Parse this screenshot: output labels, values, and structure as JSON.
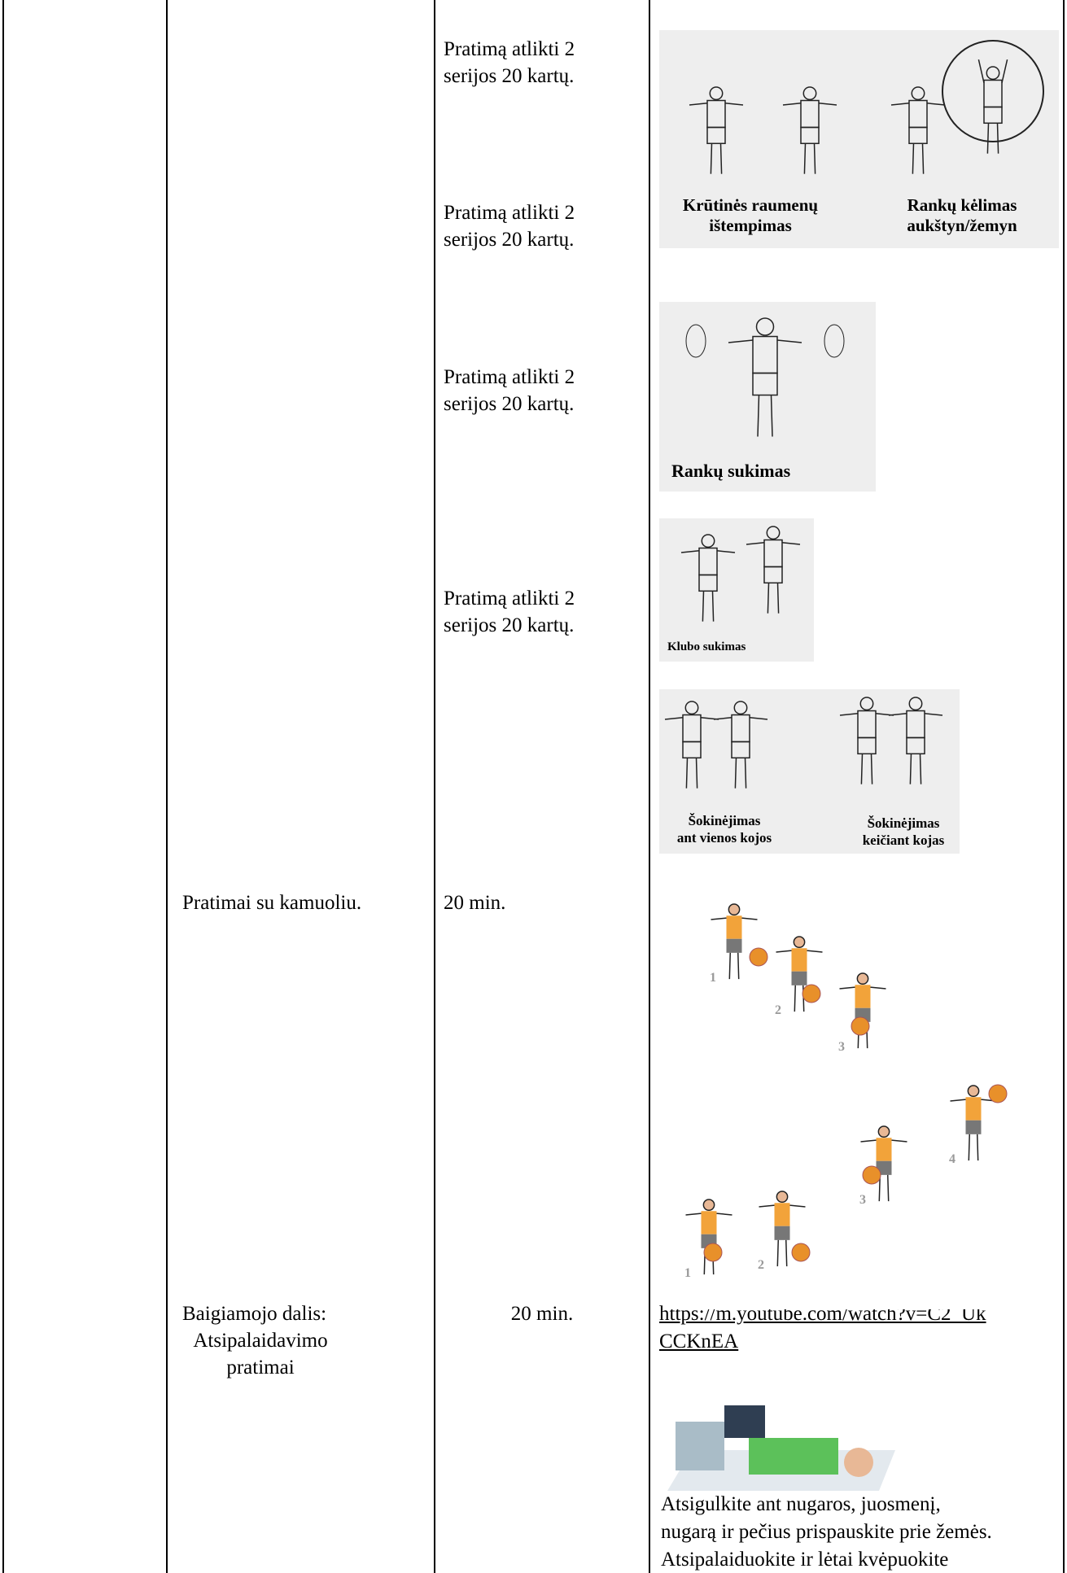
{
  "table": {
    "rows": [
      {
        "exercises": [
          {
            "text": [
              "Pratimą atlikti 2",
              "serijos 20 kartų."
            ]
          },
          {
            "text": [
              "Pratimą atlikti 2",
              "serijos 20 kartų."
            ]
          },
          {
            "text": [
              "Pratimą atlikti 2",
              "serijos 20 kartų."
            ]
          },
          {
            "text": [
              "Pratimą atlikti 2",
              "serijos 20 kartų."
            ]
          }
        ]
      },
      {
        "activity": [
          "Pratimai su kamuoliu."
        ],
        "duration": "20 min."
      },
      {
        "activity": [
          "Baigiamojo dalis:",
          "Atsipalaidavimo",
          "pratimai"
        ],
        "duration": "20 min.",
        "link": [
          "https://m.youtube.com/watch?v=C2_Uk",
          "CCKnEA"
        ],
        "description": [
          "Atsigulkite ant nugaros, juosmenį,",
          "nugarą ir pečius prispauskite prie žemės.",
          "Atsipalaiduokite ir lėtai kvėpuokite"
        ]
      }
    ]
  },
  "figures": [
    {
      "captions": [
        [
          "Krūtinės raumenų",
          "ištempimas"
        ],
        [
          "Rankų kėlimas",
          "aukštyn/žemyn"
        ]
      ]
    },
    {
      "captions": [
        [
          "Rankų sukimas"
        ]
      ]
    },
    {
      "captions": [
        [
          "Klubo sukimas"
        ]
      ]
    },
    {
      "captions": [
        [
          "Šokinėjimas",
          "ant vienos kojos"
        ],
        [
          "Šokinėjimas",
          "keičiant kojas"
        ]
      ]
    },
    {
      "steps": [
        "1",
        "2",
        "3"
      ]
    },
    {
      "steps": [
        "1",
        "2",
        "3",
        "4"
      ]
    }
  ]
}
